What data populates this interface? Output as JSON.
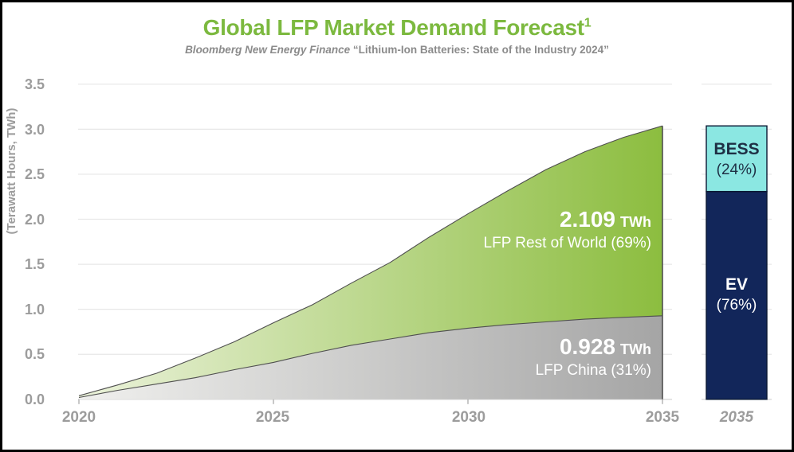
{
  "header": {
    "title": "Global LFP Market Demand Forecast",
    "title_superscript": "1",
    "subtitle_source": "Bloomberg New Energy Finance",
    "subtitle_rest": " “Lithium-Ion Batteries: State of the Industry 2024”"
  },
  "colors": {
    "title_green": "#7CB93F",
    "subtitle_gray": "#8B8B8B",
    "axis_gray": "#9C9C9C",
    "green_area_start": "#EBF2DB",
    "green_area_end": "#8CBD3F",
    "gray_area_start": "#F0F0EE",
    "gray_area_end": "#A5A5A5",
    "area_stroke": "#4F4F4F",
    "gridline": "#E7E7E7",
    "axis_line": "#D8D8D8",
    "tick_mark": "#B5B5B5",
    "bess_cyan": "#8BE7E2",
    "ev_navy": "#12265A",
    "bar_border": "#0A1833",
    "bar_text_dark": "#1E2F44",
    "annotation_white": "#FFFFFF"
  },
  "chart_data": {
    "type": "area",
    "title": "Global LFP Market Demand Forecast¹",
    "subtitle": "Bloomberg New Energy Finance “Lithium-Ion Batteries: State of the Industry 2024”",
    "ylabel": "(Terawatt Hours, TWh)",
    "xlabel": "",
    "ylim": [
      0,
      3.5
    ],
    "grid": true,
    "legend_position": "none",
    "x": [
      2020,
      2021,
      2022,
      2023,
      2024,
      2025,
      2026,
      2027,
      2028,
      2029,
      2030,
      2031,
      2032,
      2033,
      2034,
      2035
    ],
    "x_tick_labels": [
      "2020",
      "2025",
      "2030",
      "2035"
    ],
    "x_tick_years": [
      2020,
      2025,
      2030,
      2035
    ],
    "y_tick_labels": [
      "3.5",
      "3.0",
      "2.5",
      "2.0",
      "1.5",
      "1.0",
      "0.5",
      "0.0"
    ],
    "series": [
      {
        "name": "LFP China",
        "values": [
          0.02,
          0.1,
          0.17,
          0.24,
          0.33,
          0.41,
          0.51,
          0.6,
          0.67,
          0.74,
          0.79,
          0.83,
          0.86,
          0.89,
          0.91,
          0.928
        ],
        "final_value_twh": 0.928,
        "share": "31%"
      },
      {
        "name": "LFP Rest of World",
        "values": [
          0.02,
          0.06,
          0.12,
          0.22,
          0.31,
          0.44,
          0.54,
          0.69,
          0.85,
          1.06,
          1.27,
          1.48,
          1.69,
          1.86,
          2.0,
          2.109
        ],
        "final_value_twh": 2.109,
        "share": "69%"
      }
    ],
    "total_2035_twh": 3.037,
    "annotations": [
      {
        "value": "2.109",
        "unit": "TWh",
        "label": "LFP Rest of World (69%)"
      },
      {
        "value": "0.928",
        "unit": "TWh",
        "label": "LFP China (31%)"
      }
    ],
    "bar": {
      "x_label": "2035",
      "segments": [
        {
          "label": "BESS",
          "pct_label": "(24%)",
          "fraction": 0.24
        },
        {
          "label": "EV",
          "pct_label": "(76%)",
          "fraction": 0.76
        }
      ]
    }
  }
}
